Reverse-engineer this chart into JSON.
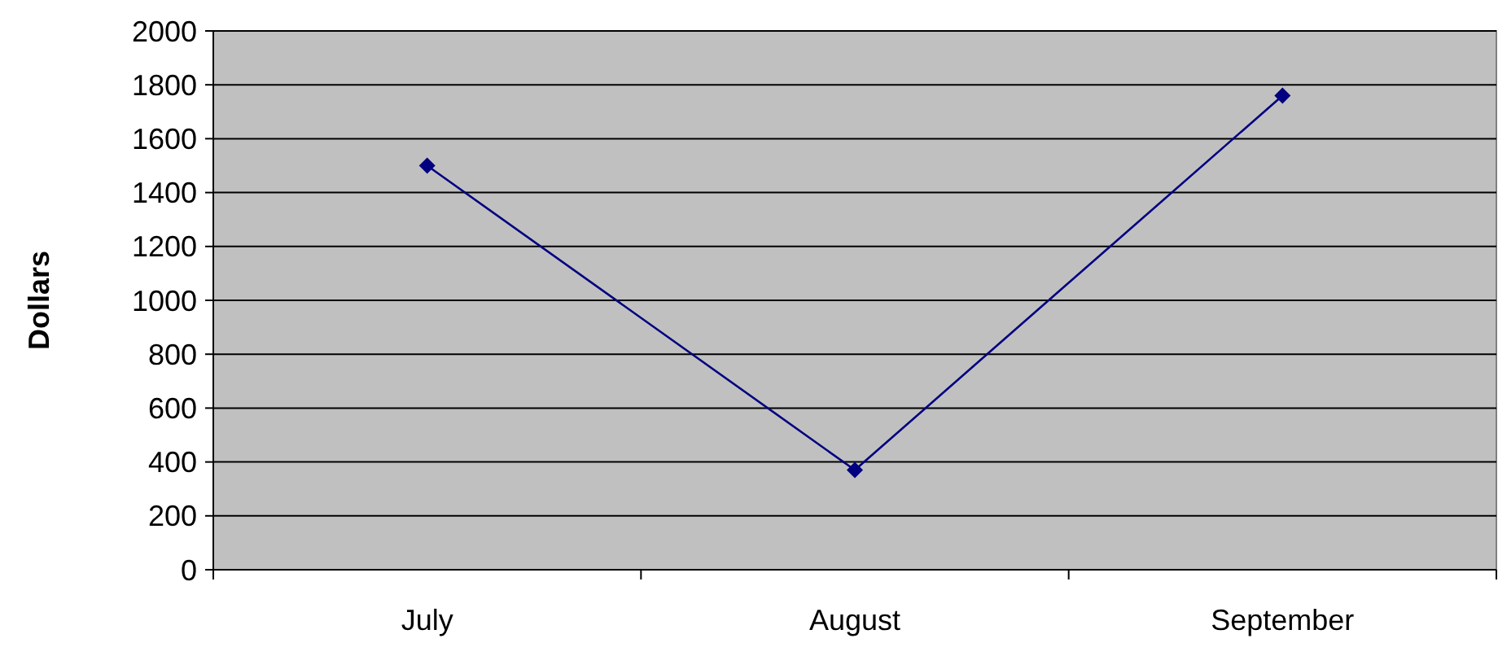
{
  "chart_data": {
    "type": "line",
    "ylabel": "Dollars",
    "categories": [
      "July",
      "August",
      "September"
    ],
    "series": [
      {
        "color": "#000080",
        "values": [
          1500,
          370,
          1760
        ]
      }
    ],
    "ylim": [
      0,
      2000
    ],
    "yticks": [
      0,
      200,
      400,
      600,
      800,
      1000,
      1200,
      1400,
      1600,
      1800,
      2000
    ],
    "grid": "y",
    "marker": "diamond",
    "line_style": "solid"
  }
}
